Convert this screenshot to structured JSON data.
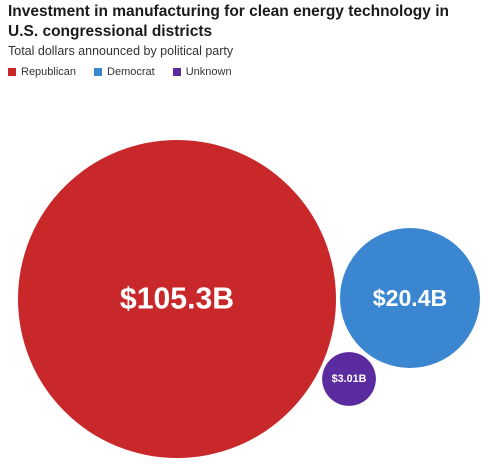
{
  "chart_data": {
    "type": "bubble",
    "title": "Investment in manufacturing for clean energy technology in U.S. congressional districts",
    "subtitle": "Total dollars announced by political party",
    "legend": {
      "placement": "top-left",
      "entries": [
        {
          "name": "Republican",
          "color": "#c8282a"
        },
        {
          "name": "Democrat",
          "color": "#3a86d0"
        },
        {
          "name": "Unknown",
          "color": "#5a2ca0"
        }
      ]
    },
    "series": [
      {
        "name": "Republican",
        "value": 105.3,
        "label": "$105.3B",
        "color": "#c8282a"
      },
      {
        "name": "Democrat",
        "value": 20.4,
        "label": "$20.4B",
        "color": "#3a86d0"
      },
      {
        "name": "Unknown",
        "value": 3.01,
        "label": "$3.01B",
        "color": "#5a2ca0"
      }
    ],
    "unit": "billion USD"
  }
}
